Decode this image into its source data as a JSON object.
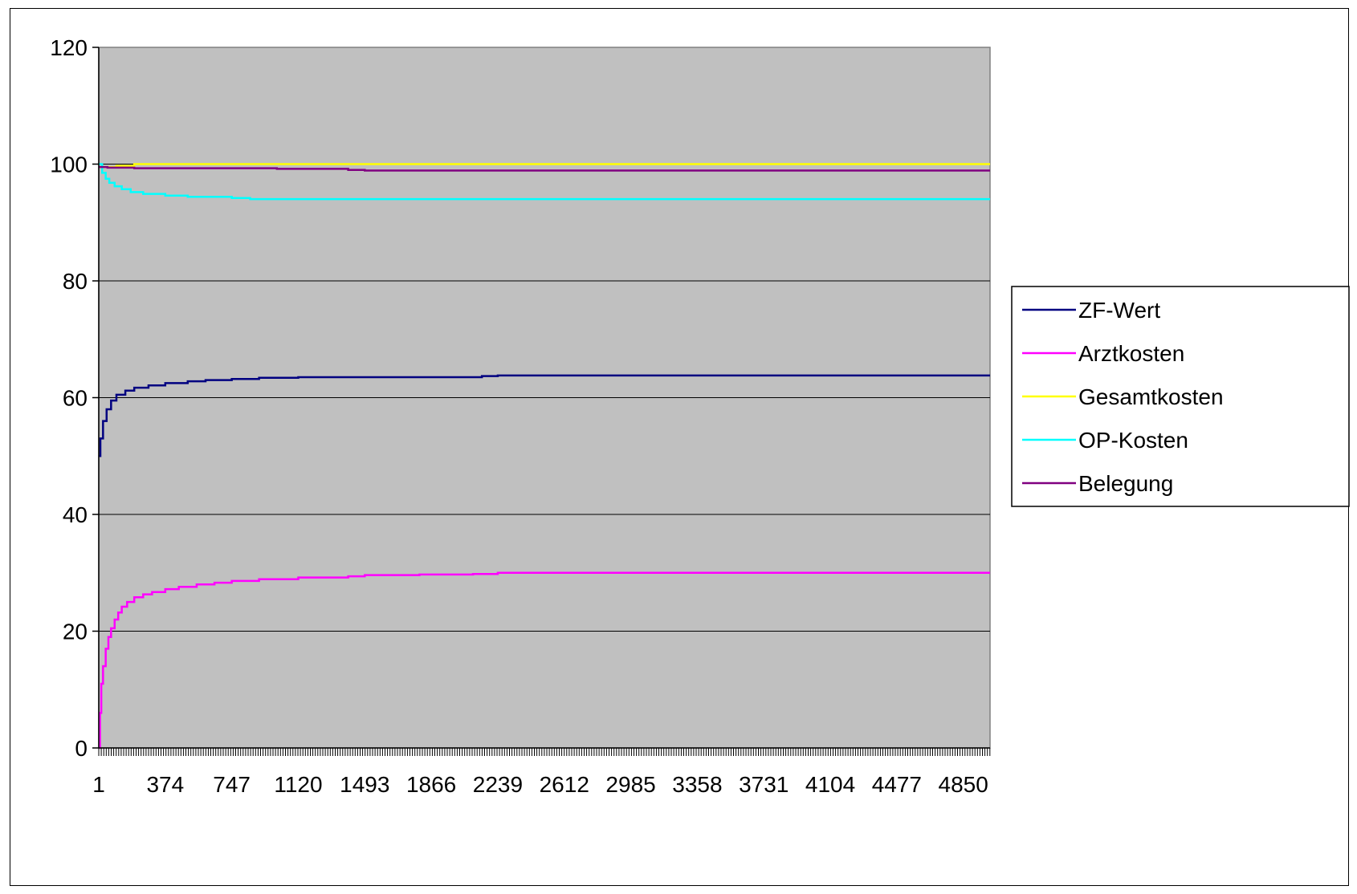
{
  "chart_data": {
    "type": "line",
    "title": "",
    "xlabel": "",
    "ylabel": "",
    "xlim": [
      1,
      5000
    ],
    "ylim": [
      0,
      120
    ],
    "y_ticks": [
      0,
      20,
      40,
      60,
      80,
      100,
      120
    ],
    "x_tick_labels": [
      1,
      374,
      747,
      1120,
      1493,
      1866,
      2239,
      2612,
      2985,
      3358,
      3731,
      4104,
      4477,
      4850
    ],
    "grid": "horizontal",
    "plot_background": "#c0c0c0",
    "legend_position": "right",
    "series": [
      {
        "name": "ZF-Wert",
        "color": "#000080",
        "points": [
          [
            1,
            50
          ],
          [
            10,
            53
          ],
          [
            25,
            56
          ],
          [
            45,
            58
          ],
          [
            70,
            59.5
          ],
          [
            100,
            60.5
          ],
          [
            150,
            61.2
          ],
          [
            200,
            61.7
          ],
          [
            280,
            62.1
          ],
          [
            374,
            62.5
          ],
          [
            500,
            62.8
          ],
          [
            600,
            63.0
          ],
          [
            747,
            63.2
          ],
          [
            900,
            63.4
          ],
          [
            1120,
            63.5
          ],
          [
            1493,
            63.5
          ],
          [
            2000,
            63.5
          ],
          [
            2150,
            63.7
          ],
          [
            2239,
            63.8
          ],
          [
            5000,
            63.8
          ]
        ]
      },
      {
        "name": "Arztkosten",
        "color": "#ff00ff",
        "points": [
          [
            1,
            0
          ],
          [
            8,
            6
          ],
          [
            15,
            11
          ],
          [
            25,
            14
          ],
          [
            40,
            17
          ],
          [
            55,
            19
          ],
          [
            70,
            20.5
          ],
          [
            90,
            22
          ],
          [
            110,
            23.2
          ],
          [
            130,
            24.2
          ],
          [
            160,
            25
          ],
          [
            200,
            25.8
          ],
          [
            250,
            26.3
          ],
          [
            300,
            26.7
          ],
          [
            374,
            27.2
          ],
          [
            450,
            27.6
          ],
          [
            550,
            28
          ],
          [
            650,
            28.3
          ],
          [
            747,
            28.6
          ],
          [
            900,
            28.9
          ],
          [
            1120,
            29.2
          ],
          [
            1400,
            29.4
          ],
          [
            1493,
            29.6
          ],
          [
            1800,
            29.7
          ],
          [
            2100,
            29.8
          ],
          [
            2239,
            30
          ],
          [
            5000,
            30
          ]
        ]
      },
      {
        "name": "Gesamtkosten",
        "color": "#ffff00",
        "points": [
          [
            1,
            99.5
          ],
          [
            100,
            99.7
          ],
          [
            200,
            100
          ],
          [
            5000,
            100
          ]
        ]
      },
      {
        "name": "OP-Kosten",
        "color": "#00ffff",
        "points": [
          [
            1,
            100
          ],
          [
            20,
            98.5
          ],
          [
            40,
            97.5
          ],
          [
            60,
            96.8
          ],
          [
            90,
            96.2
          ],
          [
            130,
            95.7
          ],
          [
            180,
            95.2
          ],
          [
            250,
            94.9
          ],
          [
            374,
            94.6
          ],
          [
            500,
            94.4
          ],
          [
            747,
            94.2
          ],
          [
            850,
            94.0
          ],
          [
            1120,
            94.0
          ],
          [
            5000,
            94.0
          ]
        ]
      },
      {
        "name": "Belegung",
        "color": "#800080",
        "points": [
          [
            1,
            99.5
          ],
          [
            50,
            99.4
          ],
          [
            200,
            99.3
          ],
          [
            600,
            99.3
          ],
          [
            1000,
            99.2
          ],
          [
            1350,
            99.2
          ],
          [
            1400,
            99.0
          ],
          [
            1493,
            98.9
          ],
          [
            5000,
            98.9
          ]
        ]
      }
    ]
  }
}
